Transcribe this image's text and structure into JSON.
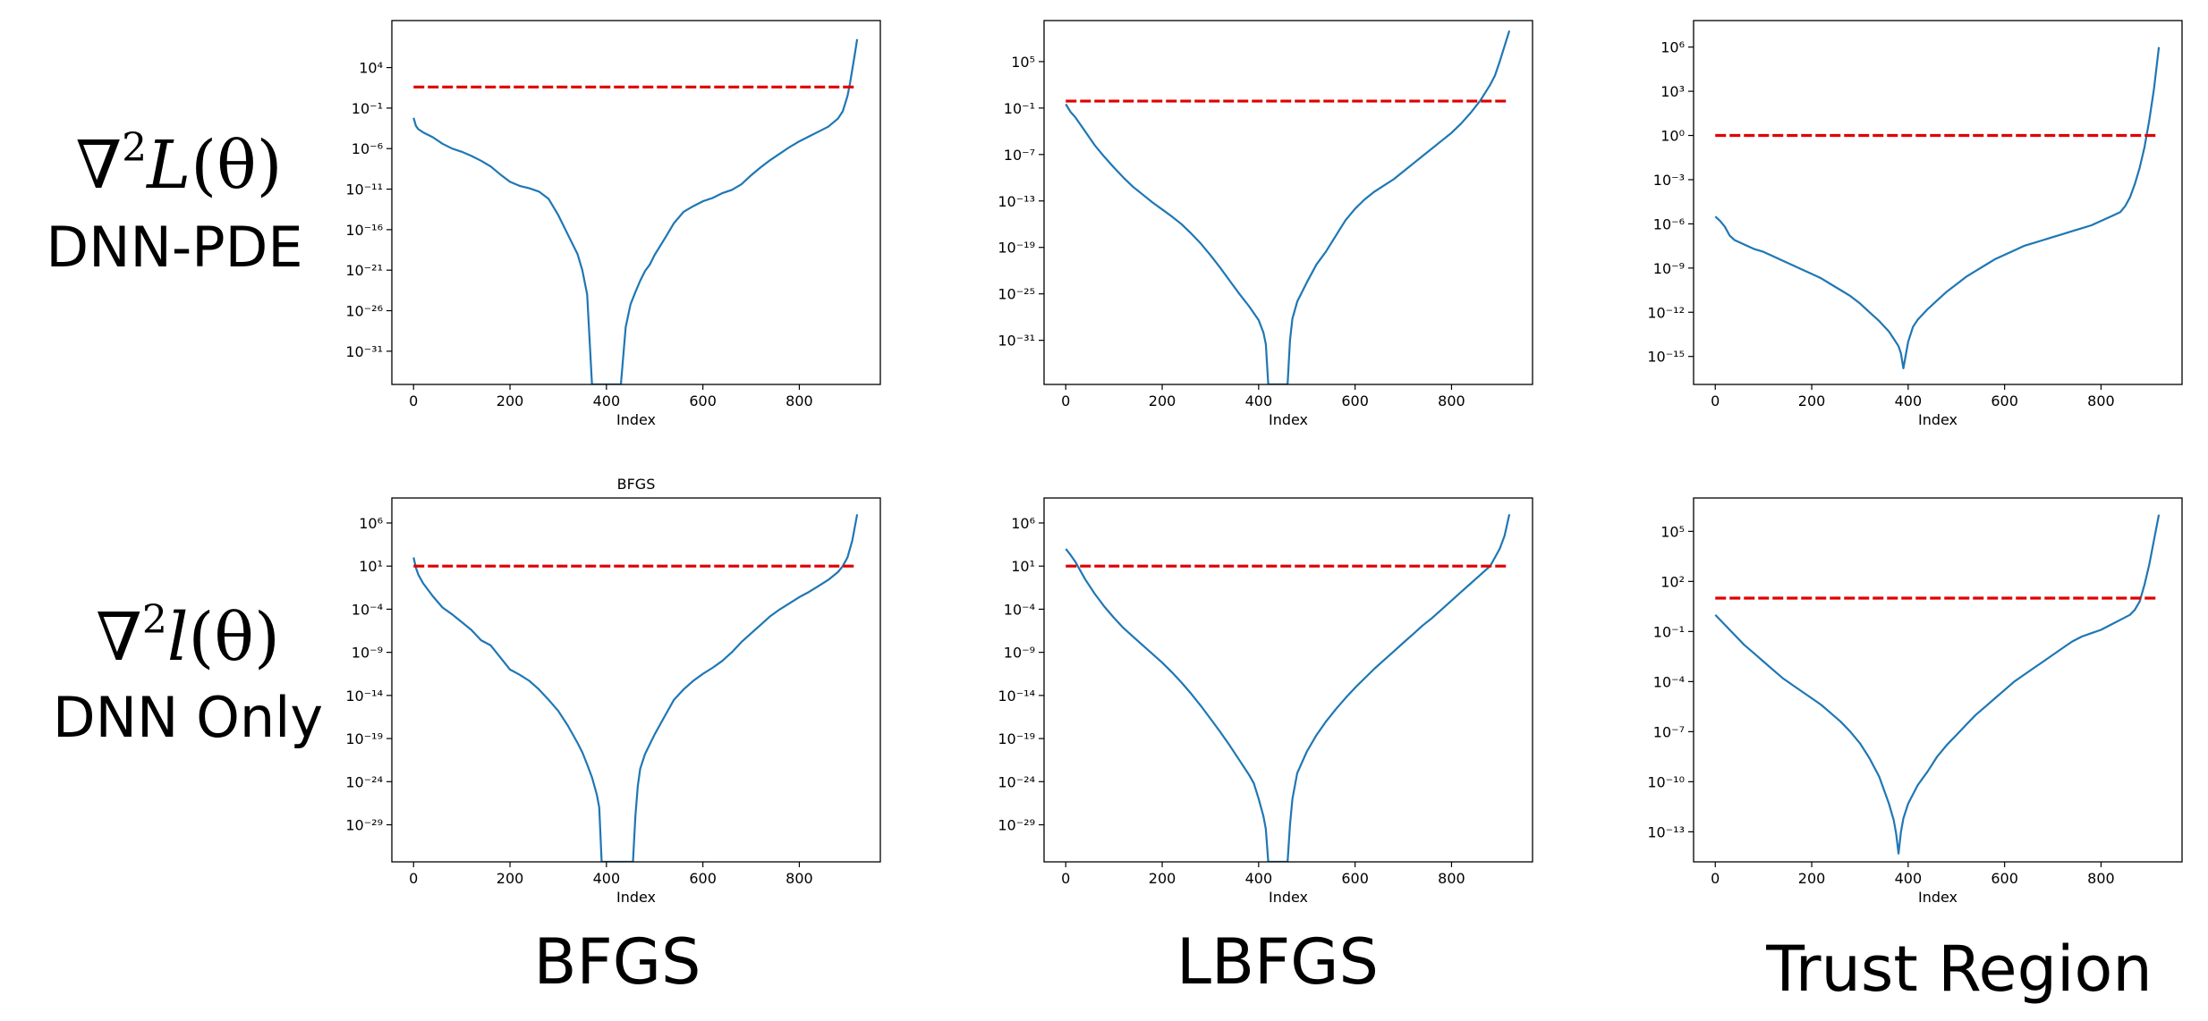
{
  "row_labels": [
    {
      "math_prefix": "∇",
      "sup": "2",
      "func": "L",
      "arg": "(θ)",
      "name": "DNN-PDE"
    },
    {
      "math_prefix": "∇",
      "sup": "2",
      "func": "l",
      "arg": "(θ)",
      "name": "DNN Only"
    }
  ],
  "column_labels": [
    "BFGS",
    "LBFGS",
    "Trust Region"
  ],
  "colors": {
    "curve": "#1f77b4",
    "threshold": "#e00000",
    "axes": "#000000"
  },
  "chart_data": [
    {
      "type": "line",
      "row": 0,
      "col": 0,
      "title": "",
      "xlabel": "Index",
      "ylabel": "",
      "yscale": "log",
      "xticks": [
        0,
        200,
        400,
        600,
        800
      ],
      "xlim": [
        -45,
        968
      ],
      "yticks": [
        4,
        -1,
        -6,
        -11,
        -16,
        -21,
        -26,
        -31
      ],
      "ylog_range": [
        -35.1,
        9.8
      ],
      "threshold_log": 1.6,
      "threshold_x": [
        0,
        920
      ],
      "series": [
        {
          "x": [
            0,
            5,
            10,
            20,
            40,
            60,
            80,
            100,
            120,
            140,
            160,
            180,
            200,
            220,
            240,
            260,
            280,
            300,
            320,
            340,
            350,
            360,
            370,
            430,
            440,
            450,
            460,
            470,
            480,
            490,
            500,
            520,
            540,
            560,
            580,
            600,
            620,
            640,
            660,
            680,
            700,
            720,
            740,
            760,
            780,
            800,
            820,
            840,
            860,
            880,
            890,
            900,
            905,
            910,
            915,
            920
          ],
          "y_log": [
            -2.2,
            -3.2,
            -3.6,
            -4.0,
            -4.6,
            -5.4,
            -6.0,
            -6.4,
            -6.9,
            -7.5,
            -8.2,
            -9.2,
            -10.1,
            -10.6,
            -10.9,
            -11.3,
            -12.2,
            -14.2,
            -16.6,
            -19.0,
            -21.0,
            -24.0,
            -35.1,
            -35.1,
            -28.0,
            -25.2,
            -23.7,
            -22.3,
            -21.1,
            -20.3,
            -19.1,
            -17.2,
            -15.2,
            -13.8,
            -13.1,
            -12.5,
            -12.1,
            -11.5,
            -11.1,
            -10.4,
            -9.3,
            -8.3,
            -7.4,
            -6.6,
            -5.8,
            -5.1,
            -4.5,
            -3.9,
            -3.3,
            -2.3,
            -1.4,
            0.5,
            2.0,
            3.8,
            5.6,
            7.5
          ]
        }
      ]
    },
    {
      "type": "line",
      "row": 0,
      "col": 1,
      "title": "",
      "xlabel": "Index",
      "ylabel": "",
      "yscale": "log",
      "xticks": [
        0,
        200,
        400,
        600,
        800
      ],
      "xlim": [
        -45,
        968
      ],
      "yticks": [
        5,
        -1,
        -7,
        -13,
        -19,
        -25,
        -31
      ],
      "ylog_range": [
        -36.7,
        10.3
      ],
      "threshold_log": -0.1,
      "threshold_x": [
        0,
        920
      ],
      "series": [
        {
          "x": [
            0,
            10,
            20,
            40,
            60,
            80,
            100,
            120,
            140,
            160,
            180,
            200,
            220,
            240,
            260,
            280,
            300,
            320,
            340,
            360,
            380,
            400,
            410,
            415,
            420,
            460,
            465,
            470,
            480,
            500,
            520,
            540,
            560,
            580,
            600,
            620,
            640,
            660,
            680,
            700,
            720,
            740,
            760,
            780,
            800,
            820,
            840,
            860,
            880,
            890,
            900,
            910,
            920
          ],
          "y_log": [
            -0.5,
            -1.5,
            -2.2,
            -4.0,
            -5.8,
            -7.3,
            -8.7,
            -10.0,
            -11.2,
            -12.2,
            -13.2,
            -14.1,
            -15.0,
            -16.0,
            -17.2,
            -18.5,
            -20.0,
            -21.6,
            -23.3,
            -25.0,
            -26.6,
            -28.4,
            -30.0,
            -31.5,
            -36.7,
            -36.7,
            -31.0,
            -28.2,
            -26.0,
            -23.5,
            -21.2,
            -19.5,
            -17.5,
            -15.5,
            -14.0,
            -12.8,
            -11.8,
            -11.0,
            -10.2,
            -9.2,
            -8.2,
            -7.2,
            -6.2,
            -5.2,
            -4.2,
            -3.0,
            -1.6,
            0.0,
            2.0,
            3.2,
            5.0,
            7.0,
            9.0
          ]
        }
      ]
    },
    {
      "type": "line",
      "row": 0,
      "col": 2,
      "title": "",
      "xlabel": "Index",
      "ylabel": "",
      "yscale": "log",
      "xticks": [
        0,
        200,
        400,
        600,
        800
      ],
      "xlim": [
        -45,
        968
      ],
      "yticks": [
        6,
        3,
        0,
        -3,
        -6,
        -9,
        -12,
        -15
      ],
      "ylog_range": [
        -16.9,
        7.8
      ],
      "threshold_log": 0.0,
      "threshold_x": [
        0,
        920
      ],
      "series": [
        {
          "x": [
            0,
            10,
            20,
            30,
            40,
            60,
            80,
            100,
            120,
            140,
            160,
            180,
            200,
            220,
            240,
            260,
            280,
            300,
            320,
            340,
            360,
            370,
            380,
            385,
            390,
            395,
            400,
            410,
            420,
            440,
            460,
            480,
            500,
            520,
            540,
            560,
            580,
            600,
            620,
            640,
            660,
            680,
            700,
            720,
            740,
            760,
            780,
            800,
            820,
            840,
            850,
            860,
            870,
            880,
            890,
            900,
            910,
            920
          ],
          "y_log": [
            -5.5,
            -5.8,
            -6.2,
            -6.8,
            -7.1,
            -7.4,
            -7.7,
            -7.9,
            -8.2,
            -8.5,
            -8.8,
            -9.1,
            -9.4,
            -9.7,
            -10.1,
            -10.5,
            -10.9,
            -11.4,
            -12.0,
            -12.6,
            -13.3,
            -13.8,
            -14.3,
            -14.8,
            -15.8,
            -14.9,
            -14.0,
            -13.0,
            -12.5,
            -11.8,
            -11.2,
            -10.6,
            -10.1,
            -9.6,
            -9.2,
            -8.8,
            -8.4,
            -8.1,
            -7.8,
            -7.5,
            -7.3,
            -7.1,
            -6.9,
            -6.7,
            -6.5,
            -6.3,
            -6.1,
            -5.8,
            -5.5,
            -5.2,
            -4.8,
            -4.2,
            -3.3,
            -2.2,
            -0.8,
            1.0,
            3.2,
            6.0
          ]
        }
      ]
    },
    {
      "type": "line",
      "row": 1,
      "col": 0,
      "title": "BFGS",
      "xlabel": "Index",
      "ylabel": "",
      "yscale": "log",
      "xticks": [
        0,
        200,
        400,
        600,
        800
      ],
      "xlim": [
        -45,
        968
      ],
      "yticks": [
        6,
        1,
        -4,
        -9,
        -14,
        -19,
        -24,
        -29
      ],
      "ylog_range": [
        -33.3,
        8.9
      ],
      "threshold_log": 1.0,
      "threshold_x": [
        0,
        920
      ],
      "series": [
        {
          "x": [
            0,
            5,
            10,
            20,
            40,
            60,
            80,
            100,
            120,
            140,
            160,
            180,
            200,
            220,
            240,
            260,
            280,
            300,
            320,
            340,
            350,
            360,
            370,
            380,
            385,
            390,
            455,
            460,
            465,
            470,
            480,
            500,
            520,
            540,
            560,
            580,
            600,
            620,
            640,
            660,
            680,
            700,
            720,
            740,
            760,
            780,
            800,
            820,
            840,
            860,
            880,
            890,
            900,
            905,
            910,
            915,
            920
          ],
          "y_log": [
            2.0,
            0.8,
            0.0,
            -1.0,
            -2.5,
            -3.8,
            -4.6,
            -5.5,
            -6.4,
            -7.6,
            -8.2,
            -9.6,
            -11.0,
            -11.6,
            -12.3,
            -13.3,
            -14.5,
            -15.8,
            -17.5,
            -19.5,
            -20.6,
            -22.0,
            -23.5,
            -25.5,
            -27.0,
            -33.3,
            -33.3,
            -28.0,
            -24.5,
            -22.5,
            -20.8,
            -18.5,
            -16.5,
            -14.5,
            -13.3,
            -12.3,
            -11.5,
            -10.8,
            -10.0,
            -9.0,
            -7.8,
            -6.8,
            -5.8,
            -4.8,
            -4.0,
            -3.3,
            -2.6,
            -2.0,
            -1.3,
            -0.6,
            0.3,
            1.0,
            2.0,
            3.0,
            4.0,
            5.5,
            7.0
          ]
        }
      ]
    },
    {
      "type": "line",
      "row": 1,
      "col": 1,
      "title": "",
      "xlabel": "Index",
      "ylabel": "",
      "yscale": "log",
      "xticks": [
        0,
        200,
        400,
        600,
        800
      ],
      "xlim": [
        -45,
        968
      ],
      "yticks": [
        6,
        1,
        -4,
        -9,
        -14,
        -19,
        -24,
        -29
      ],
      "ylog_range": [
        -33.3,
        8.9
      ],
      "threshold_log": 1.0,
      "threshold_x": [
        0,
        920
      ],
      "series": [
        {
          "x": [
            0,
            10,
            20,
            40,
            60,
            80,
            100,
            120,
            140,
            160,
            180,
            200,
            220,
            240,
            260,
            280,
            300,
            320,
            340,
            360,
            380,
            390,
            400,
            410,
            415,
            420,
            460,
            465,
            470,
            480,
            500,
            520,
            540,
            560,
            580,
            600,
            620,
            640,
            660,
            680,
            700,
            720,
            740,
            760,
            780,
            800,
            820,
            840,
            860,
            880,
            890,
            900,
            910,
            920
          ],
          "y_log": [
            3.0,
            2.3,
            1.5,
            -0.5,
            -2.2,
            -3.7,
            -5.0,
            -6.2,
            -7.2,
            -8.2,
            -9.2,
            -10.2,
            -11.3,
            -12.5,
            -13.8,
            -15.2,
            -16.7,
            -18.2,
            -19.8,
            -21.5,
            -23.2,
            -24.2,
            -26.0,
            -28.0,
            -29.5,
            -33.3,
            -33.3,
            -29.0,
            -26.0,
            -23.0,
            -20.5,
            -18.6,
            -17.0,
            -15.6,
            -14.3,
            -13.1,
            -12.0,
            -10.9,
            -9.9,
            -8.9,
            -7.9,
            -6.9,
            -5.9,
            -5.0,
            -4.0,
            -3.0,
            -2.0,
            -1.0,
            0.0,
            1.0,
            2.0,
            3.0,
            4.5,
            7.0
          ]
        }
      ]
    },
    {
      "type": "line",
      "row": 1,
      "col": 2,
      "title": "",
      "xlabel": "Index",
      "ylabel": "",
      "yscale": "log",
      "xticks": [
        0,
        200,
        400,
        600,
        800
      ],
      "xlim": [
        -45,
        968
      ],
      "yticks": [
        5,
        2,
        -1,
        -4,
        -7,
        -10,
        -13
      ],
      "ylog_range": [
        -14.8,
        7.0
      ],
      "threshold_log": 1.0,
      "threshold_x": [
        0,
        920
      ],
      "series": [
        {
          "x": [
            0,
            20,
            40,
            60,
            80,
            100,
            120,
            140,
            160,
            180,
            200,
            220,
            240,
            260,
            280,
            300,
            320,
            340,
            350,
            360,
            370,
            375,
            380,
            385,
            390,
            400,
            420,
            440,
            460,
            480,
            500,
            520,
            540,
            560,
            580,
            600,
            620,
            640,
            660,
            680,
            700,
            720,
            740,
            760,
            780,
            800,
            820,
            840,
            860,
            870,
            880,
            890,
            900,
            910,
            920
          ],
          "y_log": [
            0.0,
            -0.6,
            -1.2,
            -1.8,
            -2.3,
            -2.8,
            -3.3,
            -3.8,
            -4.2,
            -4.6,
            -5.0,
            -5.4,
            -5.9,
            -6.4,
            -7.0,
            -7.7,
            -8.6,
            -9.7,
            -10.5,
            -11.3,
            -12.3,
            -13.1,
            -14.3,
            -13.0,
            -12.2,
            -11.3,
            -10.2,
            -9.4,
            -8.5,
            -7.8,
            -7.2,
            -6.6,
            -6.0,
            -5.5,
            -5.0,
            -4.5,
            -4.0,
            -3.6,
            -3.2,
            -2.8,
            -2.4,
            -2.0,
            -1.6,
            -1.3,
            -1.1,
            -0.9,
            -0.6,
            -0.3,
            0.0,
            0.3,
            0.8,
            1.8,
            3.0,
            4.5,
            6.0
          ]
        }
      ]
    }
  ]
}
